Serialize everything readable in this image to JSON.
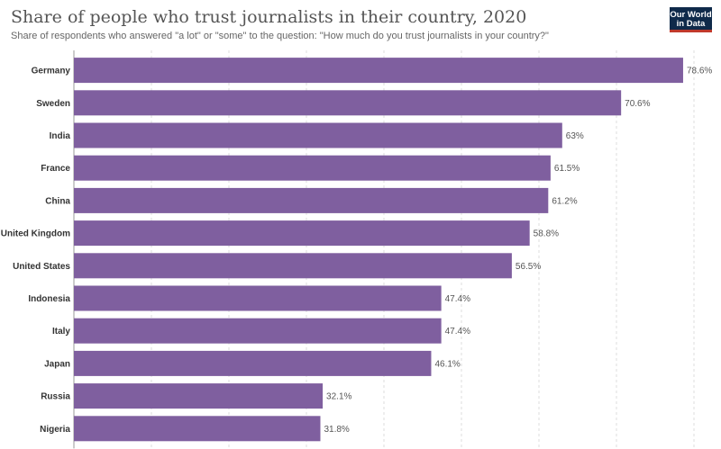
{
  "title": "Share of people who trust journalists in their country, 2020",
  "subtitle": "Share of respondents who answered \"a lot\" or \"some\" to the question: \"How much do you trust journalists in your country?\"",
  "logo": {
    "line1": "Our World",
    "line2": "in Data"
  },
  "colors": {
    "bar": "#7f5f9f",
    "grid": "#dddddd",
    "text": "#333333"
  },
  "chart_data": {
    "type": "bar",
    "orientation": "horizontal",
    "title": "Share of people who trust journalists in their country, 2020",
    "subtitle": "Share of respondents who answered \"a lot\" or \"some\" to the question: \"How much do you trust journalists in your country?\"",
    "categories": [
      "Germany",
      "Sweden",
      "India",
      "France",
      "China",
      "United Kingdom",
      "United States",
      "Indonesia",
      "Italy",
      "Japan",
      "Russia",
      "Nigeria"
    ],
    "values": [
      78.6,
      70.6,
      63,
      61.5,
      61.2,
      58.8,
      56.5,
      47.4,
      47.4,
      46.1,
      32.1,
      31.8
    ],
    "value_labels": [
      "78.6%",
      "70.6%",
      "63%",
      "61.5%",
      "61.2%",
      "58.8%",
      "56.5%",
      "47.4%",
      "47.4%",
      "46.1%",
      "32.1%",
      "31.8%"
    ],
    "xlim": [
      0,
      80
    ],
    "grid": true
  }
}
